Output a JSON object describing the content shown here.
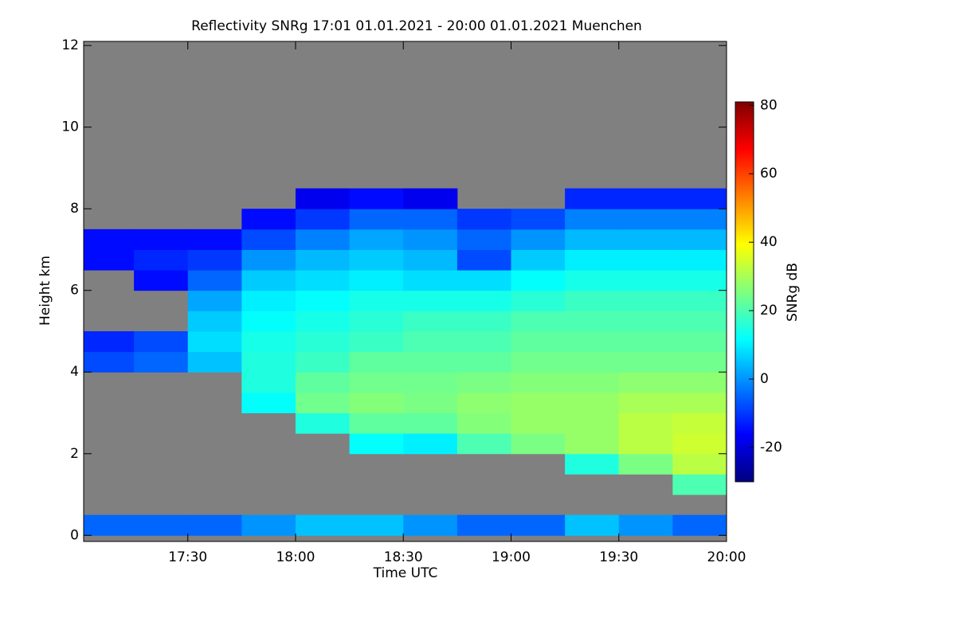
{
  "chart_data": {
    "type": "heatmap",
    "title": "Reflectivity SNRg   17:01 01.01.2021 - 20:00 01.01.2021 Muenchen",
    "x_label": "Time UTC",
    "y_label": "Height km",
    "colorbar_label": "SNRg dB",
    "background": "#808080",
    "colormap": [
      "#00007f",
      "#0000ff",
      "#007fff",
      "#00ffff",
      "#7fff7f",
      "#ffff00",
      "#ff7f00",
      "#ff0000",
      "#7f0000"
    ],
    "xlim": [
      17.0167,
      20.0
    ],
    "xticks": [
      {
        "value": 17.5,
        "label": "17:30"
      },
      {
        "value": 18,
        "label": "18:00"
      },
      {
        "value": 18.5,
        "label": "18:30"
      },
      {
        "value": 19,
        "label": "19:00"
      },
      {
        "value": 19.5,
        "label": "19:30"
      },
      {
        "value": 20,
        "label": "20:00"
      }
    ],
    "ylim": [
      -0.15,
      12.1
    ],
    "yticks": [
      0,
      2,
      4,
      6,
      8,
      10,
      12
    ],
    "clim": [
      -30,
      81
    ],
    "cticks": [
      -20,
      0,
      20,
      40,
      60,
      80
    ],
    "x": [
      17.125,
      17.375,
      17.625,
      17.875,
      18.125,
      18.375,
      18.625,
      18.875,
      19.125,
      19.375,
      19.625,
      19.875
    ],
    "y": [
      0.25,
      0.75,
      1.25,
      1.75,
      2.25,
      2.75,
      3.25,
      3.75,
      4.25,
      4.75,
      5.25,
      5.75,
      6.25,
      6.75,
      7.25,
      7.75,
      8.25,
      8.75,
      9.25,
      9.75,
      10.25,
      10.75,
      11.25,
      11.75
    ],
    "z": [
      [
        -5,
        -5,
        -5,
        0,
        5,
        5,
        0,
        -5,
        -5,
        5,
        0,
        -5
      ],
      [
        null,
        null,
        null,
        null,
        null,
        null,
        null,
        null,
        null,
        null,
        null,
        null
      ],
      [
        null,
        null,
        null,
        null,
        null,
        null,
        null,
        null,
        null,
        null,
        null,
        20
      ],
      [
        null,
        null,
        null,
        null,
        null,
        null,
        null,
        null,
        null,
        15,
        25,
        32
      ],
      [
        null,
        null,
        null,
        null,
        null,
        12,
        10,
        20,
        25,
        28,
        32,
        34
      ],
      [
        null,
        null,
        null,
        null,
        15,
        22,
        22,
        26,
        28,
        28,
        32,
        33
      ],
      [
        null,
        null,
        null,
        12,
        24,
        26,
        25,
        27,
        28,
        28,
        30,
        30
      ],
      [
        null,
        null,
        null,
        15,
        22,
        24,
        24,
        25,
        26,
        26,
        27,
        27
      ],
      [
        -8,
        -5,
        5,
        15,
        18,
        22,
        22,
        22,
        24,
        24,
        24,
        24
      ],
      [
        -12,
        -8,
        8,
        14,
        16,
        18,
        20,
        20,
        22,
        22,
        22,
        22
      ],
      [
        null,
        null,
        6,
        12,
        14,
        16,
        18,
        18,
        20,
        20,
        20,
        20
      ],
      [
        null,
        null,
        2,
        10,
        12,
        14,
        14,
        14,
        16,
        18,
        18,
        18
      ],
      [
        null,
        -15,
        -5,
        6,
        8,
        10,
        8,
        8,
        12,
        14,
        14,
        14
      ],
      [
        -15,
        -12,
        -10,
        0,
        4,
        6,
        4,
        -8,
        6,
        10,
        10,
        10
      ],
      [
        -15,
        -15,
        -15,
        -8,
        -2,
        2,
        0,
        -5,
        0,
        4,
        4,
        4
      ],
      [
        null,
        null,
        null,
        -15,
        -10,
        -5,
        -5,
        -10,
        -8,
        -2,
        -2,
        -2
      ],
      [
        null,
        null,
        null,
        null,
        -18,
        -15,
        -18,
        null,
        null,
        -12,
        -12,
        -12
      ],
      [
        null,
        null,
        null,
        null,
        null,
        null,
        null,
        null,
        null,
        null,
        null,
        null
      ],
      [
        null,
        null,
        null,
        null,
        null,
        null,
        null,
        null,
        null,
        null,
        null,
        null
      ],
      [
        null,
        null,
        null,
        null,
        null,
        null,
        null,
        null,
        null,
        null,
        null,
        null
      ],
      [
        null,
        null,
        null,
        null,
        null,
        null,
        null,
        null,
        null,
        null,
        null,
        null
      ],
      [
        null,
        null,
        null,
        null,
        null,
        null,
        null,
        null,
        null,
        null,
        null,
        null
      ],
      [
        null,
        null,
        null,
        null,
        null,
        null,
        null,
        null,
        null,
        null,
        null,
        null
      ],
      [
        null,
        null,
        null,
        null,
        null,
        null,
        null,
        null,
        null,
        null,
        null,
        null
      ]
    ]
  }
}
